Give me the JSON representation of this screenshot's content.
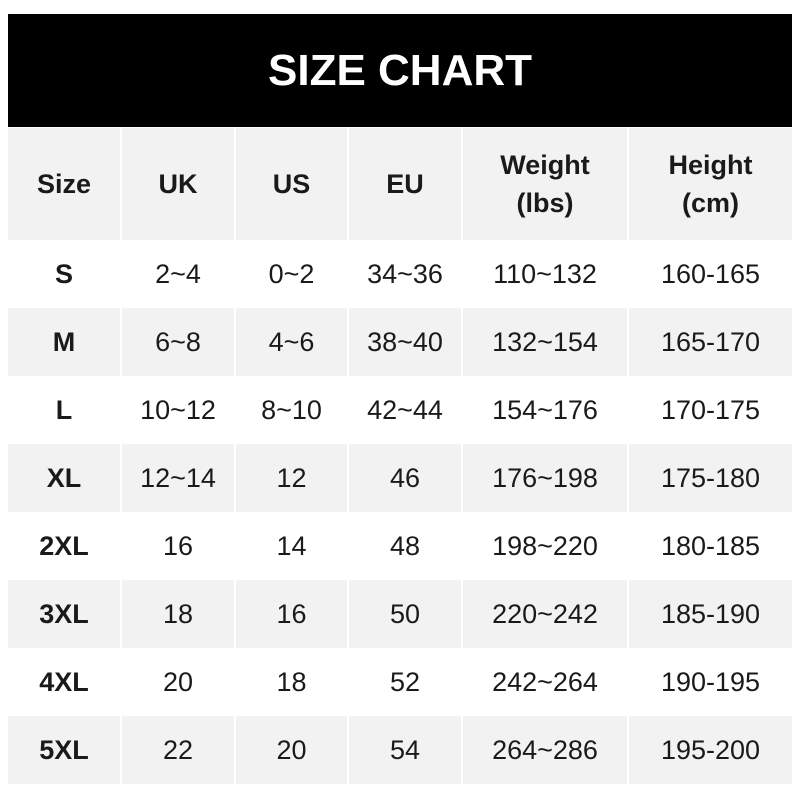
{
  "title": "SIZE CHART",
  "chart_data": {
    "type": "table",
    "title": "SIZE CHART",
    "columns": [
      "Size",
      "UK",
      "US",
      "EU",
      "Weight (lbs)",
      "Height (cm)"
    ],
    "header_lines": [
      [
        "Size"
      ],
      [
        "UK"
      ],
      [
        "US"
      ],
      [
        "EU"
      ],
      [
        "Weight",
        "(lbs)"
      ],
      [
        "Height",
        "(cm)"
      ]
    ],
    "rows": [
      [
        "S",
        "2~4",
        "0~2",
        "34~36",
        "110~132",
        "160-165"
      ],
      [
        "M",
        "6~8",
        "4~6",
        "38~40",
        "132~154",
        "165-170"
      ],
      [
        "L",
        "10~12",
        "8~10",
        "42~44",
        "154~176",
        "170-175"
      ],
      [
        "XL",
        "12~14",
        "12",
        "46",
        "176~198",
        "175-180"
      ],
      [
        "2XL",
        "16",
        "14",
        "48",
        "198~220",
        "180-185"
      ],
      [
        "3XL",
        "18",
        "16",
        "50",
        "220~242",
        "185-190"
      ],
      [
        "4XL",
        "20",
        "18",
        "52",
        "242~264",
        "190-195"
      ],
      [
        "5XL",
        "22",
        "20",
        "54",
        "264~286",
        "195-200"
      ]
    ]
  },
  "colors": {
    "title_bg": "#000000",
    "title_text": "#ffffff",
    "stripe": "#f2f2f2",
    "text": "#1a1a1a"
  }
}
